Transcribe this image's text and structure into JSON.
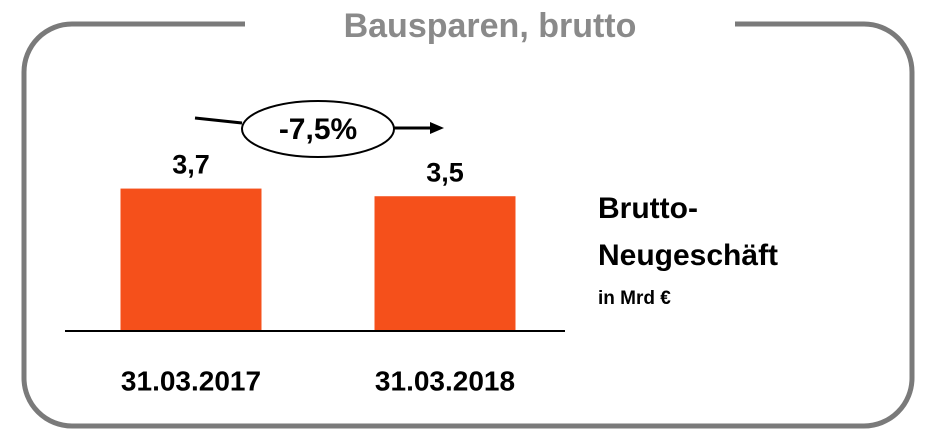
{
  "chart_data": {
    "type": "bar",
    "title": "Bausparen, brutto",
    "categories": [
      "31.03.2017",
      "31.03.2018"
    ],
    "values": [
      3.7,
      3.5
    ],
    "value_labels": [
      "3,7",
      "3,5"
    ],
    "color": "#f5501b",
    "ylim": [
      0,
      4.5
    ],
    "annotation": "-7,5%",
    "label_lines": [
      "Brutto-",
      "Neugeschäft"
    ],
    "unit": "in Mrd €"
  }
}
